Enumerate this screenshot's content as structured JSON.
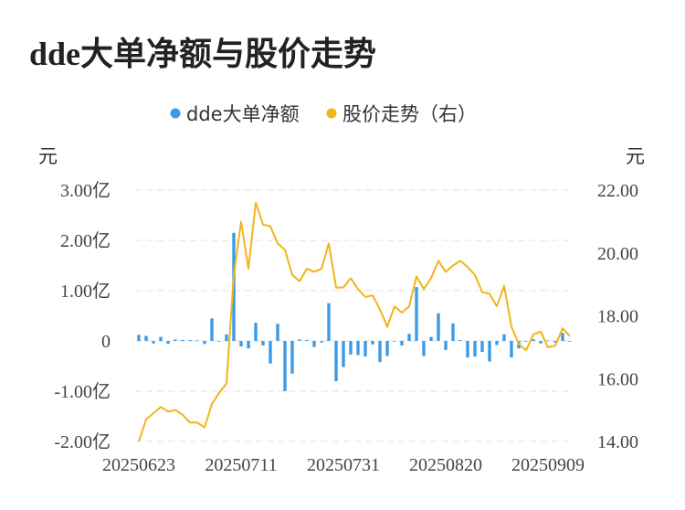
{
  "title": "dde大单净额与股价走势",
  "colors": {
    "bar": "#3c9be8",
    "line": "#f1b41b",
    "grid": "#e6e6e6",
    "text": "#444444"
  },
  "chart_data": {
    "type": "bar+line",
    "title": "dde大单净额与股价走势",
    "legend": [
      {
        "label": "dde大单净额",
        "color": "#3c9be8"
      },
      {
        "label": "股价走势（右）",
        "color": "#f1b41b"
      }
    ],
    "legend_position": "top-center",
    "grid": true,
    "y_left": {
      "unit": "元",
      "min": -2.0,
      "max": 3.0,
      "ticks": [
        -2,
        -1,
        0,
        1,
        2,
        3
      ],
      "tick_labels": [
        "-2.00亿",
        "-1.00亿",
        "0",
        "1.00亿",
        "2.00亿",
        "3.00亿"
      ]
    },
    "y_right": {
      "unit": "元",
      "min": 14.0,
      "max": 22.0,
      "ticks": [
        14,
        16,
        18,
        20,
        22
      ],
      "tick_labels": [
        "14.00",
        "16.00",
        "18.00",
        "20.00",
        "22.00"
      ]
    },
    "x_tick_labels": [
      {
        "index": 0,
        "label": "20250623"
      },
      {
        "index": 14,
        "label": "20250711"
      },
      {
        "index": 28,
        "label": "20250731"
      },
      {
        "index": 42,
        "label": "20250820"
      },
      {
        "index": 56,
        "label": "20250909"
      }
    ],
    "series": [
      {
        "name": "dde大单净额",
        "type": "bar",
        "axis": "left",
        "values": [
          0.12,
          0.1,
          -0.05,
          0.08,
          -0.06,
          0.03,
          0.02,
          0.02,
          0.01,
          -0.06,
          0.45,
          0.0,
          0.13,
          2.15,
          -0.11,
          -0.15,
          0.36,
          -0.09,
          -0.45,
          0.34,
          -1.0,
          -0.65,
          0.03,
          0.02,
          -0.12,
          -0.03,
          0.75,
          -0.8,
          -0.52,
          -0.27,
          -0.28,
          -0.31,
          -0.07,
          -0.42,
          -0.3,
          0.0,
          -0.09,
          0.14,
          1.07,
          -0.3,
          0.08,
          0.55,
          -0.18,
          0.35,
          0.02,
          -0.33,
          -0.31,
          -0.22,
          -0.41,
          -0.08,
          0.13,
          -0.33,
          -0.15,
          0.0,
          0.03,
          -0.05,
          0.01,
          -0.03,
          0.16,
          0.0
        ]
      },
      {
        "name": "股价走势（右）",
        "type": "line",
        "axis": "right",
        "values": [
          14.0,
          14.7,
          14.9,
          15.1,
          14.95,
          15.0,
          14.85,
          14.6,
          14.6,
          14.45,
          15.2,
          15.55,
          15.85,
          19.3,
          21.0,
          19.5,
          21.6,
          20.9,
          20.85,
          20.3,
          20.1,
          19.3,
          19.1,
          19.5,
          19.4,
          19.5,
          20.3,
          18.9,
          18.9,
          19.2,
          18.85,
          18.6,
          18.65,
          18.2,
          17.65,
          18.3,
          18.1,
          18.3,
          19.25,
          18.85,
          19.2,
          19.75,
          19.4,
          19.6,
          19.75,
          19.55,
          19.3,
          18.75,
          18.7,
          18.3,
          18.95,
          17.65,
          17.1,
          16.9,
          17.4,
          17.5,
          17.0,
          17.05,
          17.6,
          17.35
        ]
      }
    ]
  }
}
